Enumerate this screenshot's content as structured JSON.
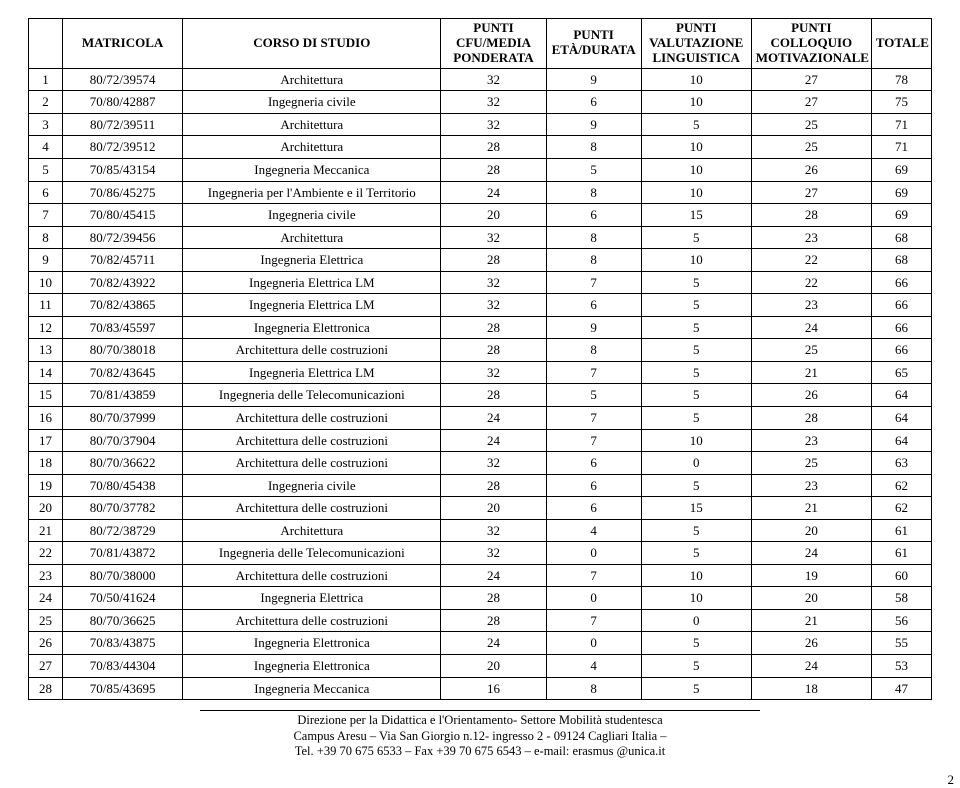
{
  "headers": {
    "idx": "",
    "matricola": "MATRICOLA",
    "corso": "CORSO DI STUDIO",
    "p_media": "PUNTI CFU/MEDIA PONDERATA",
    "p_eta": "PUNTI ETÀ/DURATA",
    "p_ling": "PUNTI VALUTAZIONE LINGUISTICA",
    "p_coll": "PUNTI COLLOQUIO MOTIVAZIONALE",
    "totale": "TOTALE"
  },
  "rows": [
    {
      "n": "1",
      "mat": "80/72/39574",
      "course": "Architettura",
      "p1": "32",
      "p2": "9",
      "p3": "10",
      "p4": "27",
      "tot": "78"
    },
    {
      "n": "2",
      "mat": "70/80/42887",
      "course": "Ingegneria civile",
      "p1": "32",
      "p2": "6",
      "p3": "10",
      "p4": "27",
      "tot": "75"
    },
    {
      "n": "3",
      "mat": "80/72/39511",
      "course": "Architettura",
      "p1": "32",
      "p2": "9",
      "p3": "5",
      "p4": "25",
      "tot": "71"
    },
    {
      "n": "4",
      "mat": "80/72/39512",
      "course": "Architettura",
      "p1": "28",
      "p2": "8",
      "p3": "10",
      "p4": "25",
      "tot": "71"
    },
    {
      "n": "5",
      "mat": "70/85/43154",
      "course": "Ingegneria Meccanica",
      "p1": "28",
      "p2": "5",
      "p3": "10",
      "p4": "26",
      "tot": "69"
    },
    {
      "n": "6",
      "mat": "70/86/45275",
      "course": "Ingegneria per l'Ambiente e il Territorio",
      "p1": "24",
      "p2": "8",
      "p3": "10",
      "p4": "27",
      "tot": "69"
    },
    {
      "n": "7",
      "mat": "70/80/45415",
      "course": "Ingegneria civile",
      "p1": "20",
      "p2": "6",
      "p3": "15",
      "p4": "28",
      "tot": "69"
    },
    {
      "n": "8",
      "mat": "80/72/39456",
      "course": "Architettura",
      "p1": "32",
      "p2": "8",
      "p3": "5",
      "p4": "23",
      "tot": "68"
    },
    {
      "n": "9",
      "mat": "70/82/45711",
      "course": "Ingegneria Elettrica",
      "p1": "28",
      "p2": "8",
      "p3": "10",
      "p4": "22",
      "tot": "68"
    },
    {
      "n": "10",
      "mat": "70/82/43922",
      "course": "Ingegneria Elettrica LM",
      "p1": "32",
      "p2": "7",
      "p3": "5",
      "p4": "22",
      "tot": "66"
    },
    {
      "n": "11",
      "mat": "70/82/43865",
      "course": "Ingegneria Elettrica LM",
      "p1": "32",
      "p2": "6",
      "p3": "5",
      "p4": "23",
      "tot": "66"
    },
    {
      "n": "12",
      "mat": "70/83/45597",
      "course": "Ingegneria Elettronica",
      "p1": "28",
      "p2": "9",
      "p3": "5",
      "p4": "24",
      "tot": "66"
    },
    {
      "n": "13",
      "mat": "80/70/38018",
      "course": "Architettura delle costruzioni",
      "p1": "28",
      "p2": "8",
      "p3": "5",
      "p4": "25",
      "tot": "66"
    },
    {
      "n": "14",
      "mat": "70/82/43645",
      "course": "Ingegneria Elettrica LM",
      "p1": "32",
      "p2": "7",
      "p3": "5",
      "p4": "21",
      "tot": "65"
    },
    {
      "n": "15",
      "mat": "70/81/43859",
      "course": "Ingegneria delle Telecomunicazioni",
      "p1": "28",
      "p2": "5",
      "p3": "5",
      "p4": "26",
      "tot": "64"
    },
    {
      "n": "16",
      "mat": "80/70/37999",
      "course": "Architettura delle costruzioni",
      "p1": "24",
      "p2": "7",
      "p3": "5",
      "p4": "28",
      "tot": "64"
    },
    {
      "n": "17",
      "mat": "80/70/37904",
      "course": "Architettura delle costruzioni",
      "p1": "24",
      "p2": "7",
      "p3": "10",
      "p4": "23",
      "tot": "64"
    },
    {
      "n": "18",
      "mat": "80/70/36622",
      "course": "Architettura delle costruzioni",
      "p1": "32",
      "p2": "6",
      "p3": "0",
      "p4": "25",
      "tot": "63"
    },
    {
      "n": "19",
      "mat": "70/80/45438",
      "course": "Ingegneria civile",
      "p1": "28",
      "p2": "6",
      "p3": "5",
      "p4": "23",
      "tot": "62"
    },
    {
      "n": "20",
      "mat": "80/70/37782",
      "course": "Architettura delle costruzioni",
      "p1": "20",
      "p2": "6",
      "p3": "15",
      "p4": "21",
      "tot": "62"
    },
    {
      "n": "21",
      "mat": "80/72/38729",
      "course": "Architettura",
      "p1": "32",
      "p2": "4",
      "p3": "5",
      "p4": "20",
      "tot": "61"
    },
    {
      "n": "22",
      "mat": "70/81/43872",
      "course": "Ingegneria delle Telecomunicazioni",
      "p1": "32",
      "p2": "0",
      "p3": "5",
      "p4": "24",
      "tot": "61"
    },
    {
      "n": "23",
      "mat": "80/70/38000",
      "course": "Architettura delle costruzioni",
      "p1": "24",
      "p2": "7",
      "p3": "10",
      "p4": "19",
      "tot": "60"
    },
    {
      "n": "24",
      "mat": "70/50/41624",
      "course": "Ingegneria Elettrica",
      "p1": "28",
      "p2": "0",
      "p3": "10",
      "p4": "20",
      "tot": "58"
    },
    {
      "n": "25",
      "mat": "80/70/36625",
      "course": "Architettura delle costruzioni",
      "p1": "28",
      "p2": "7",
      "p3": "0",
      "p4": "21",
      "tot": "56"
    },
    {
      "n": "26",
      "mat": "70/83/43875",
      "course": "Ingegneria Elettronica",
      "p1": "24",
      "p2": "0",
      "p3": "5",
      "p4": "26",
      "tot": "55"
    },
    {
      "n": "27",
      "mat": "70/83/44304",
      "course": "Ingegneria Elettronica",
      "p1": "20",
      "p2": "4",
      "p3": "5",
      "p4": "24",
      "tot": "53"
    },
    {
      "n": "28",
      "mat": "70/85/43695",
      "course": "Ingegneria Meccanica",
      "p1": "16",
      "p2": "8",
      "p3": "5",
      "p4": "18",
      "tot": "47"
    }
  ],
  "footer": {
    "line1": "Direzione per la Didattica e l'Orientamento- Settore Mobilità studentesca",
    "line2": "Campus Aresu – Via San Giorgio n.12- ingresso 2 - 09124 Cagliari Italia –",
    "line3": "Tel. +39 70 675 6533 – Fax +39 70 675 6543 – e-mail: erasmus @unica.it"
  },
  "page_number": "2"
}
